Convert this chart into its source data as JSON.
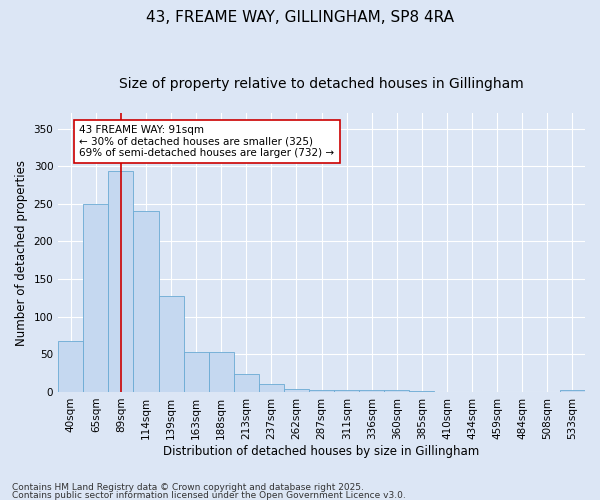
{
  "title_line1": "43, FREAME WAY, GILLINGHAM, SP8 4RA",
  "title_line2": "Size of property relative to detached houses in Gillingham",
  "xlabel": "Distribution of detached houses by size in Gillingham",
  "ylabel": "Number of detached properties",
  "bar_labels": [
    "40sqm",
    "65sqm",
    "89sqm",
    "114sqm",
    "139sqm",
    "163sqm",
    "188sqm",
    "213sqm",
    "237sqm",
    "262sqm",
    "287sqm",
    "311sqm",
    "336sqm",
    "360sqm",
    "385sqm",
    "410sqm",
    "434sqm",
    "459sqm",
    "484sqm",
    "508sqm",
    "533sqm"
  ],
  "bar_values": [
    68,
    250,
    293,
    240,
    127,
    53,
    53,
    24,
    10,
    4,
    2,
    2,
    2,
    2,
    1,
    0,
    0,
    0,
    0,
    0,
    2
  ],
  "bar_color": "#c5d8f0",
  "bar_edge_color": "#6aaad4",
  "vline_x": 2,
  "vline_color": "#cc0000",
  "annotation_text": "43 FREAME WAY: 91sqm\n← 30% of detached houses are smaller (325)\n69% of semi-detached houses are larger (732) →",
  "annotation_box_facecolor": "#ffffff",
  "annotation_box_edgecolor": "#cc0000",
  "ylim": [
    0,
    370
  ],
  "yticks": [
    0,
    50,
    100,
    150,
    200,
    250,
    300,
    350
  ],
  "fig_bg_color": "#dce6f5",
  "plot_bg_color": "#dce6f5",
  "grid_color": "#ffffff",
  "title1_fontsize": 11,
  "title2_fontsize": 10,
  "axis_label_fontsize": 8.5,
  "tick_fontsize": 7.5,
  "annotation_fontsize": 7.5,
  "footer_fontsize": 6.5,
  "footer_line1": "Contains HM Land Registry data © Crown copyright and database right 2025.",
  "footer_line2": "Contains public sector information licensed under the Open Government Licence v3.0."
}
